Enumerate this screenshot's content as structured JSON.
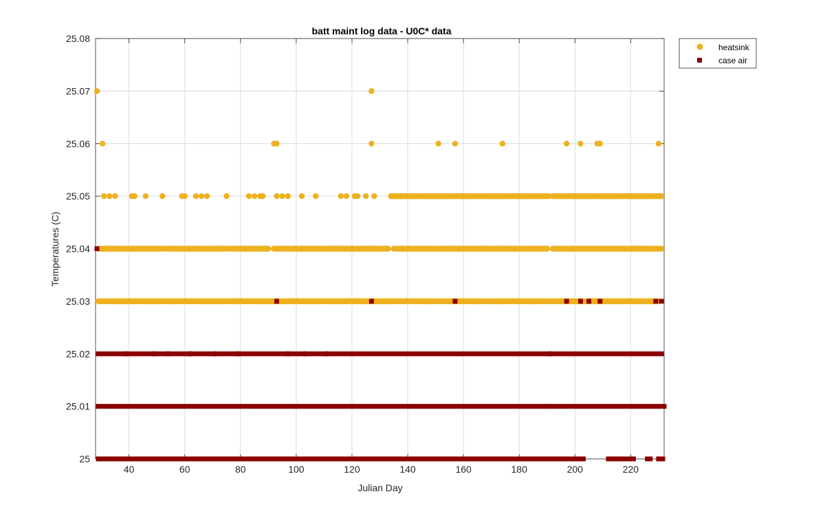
{
  "chart_data": {
    "type": "scatter",
    "title": "batt maint log data - U0C* data",
    "xlabel": "Julian Day",
    "ylabel": "Temperatures (C)",
    "xlim": [
      28,
      232
    ],
    "ylim": [
      25,
      25.08
    ],
    "x_ticks": [
      40,
      60,
      80,
      100,
      120,
      140,
      160,
      180,
      200,
      220
    ],
    "y_ticks": [
      25,
      25.01,
      25.02,
      25.03,
      25.04,
      25.05,
      25.06,
      25.07,
      25.08
    ],
    "y_tick_labels": [
      "25",
      "25.01",
      "25.02",
      "25.03",
      "25.04",
      "25.05",
      "25.06",
      "25.07",
      "25.08"
    ],
    "grid": true,
    "legend_position": "outside top-right",
    "series": [
      {
        "name": "heatsink",
        "marker": "circle",
        "color": "#EDB120",
        "points": [
          [
            28.5,
            25.07
          ],
          [
            30.5,
            25.06
          ],
          [
            92,
            25.06
          ],
          [
            93,
            25.06
          ],
          [
            127,
            25.07
          ],
          [
            127,
            25.06
          ],
          [
            151,
            25.06
          ],
          [
            157,
            25.06
          ],
          [
            174,
            25.06
          ],
          [
            197,
            25.06
          ],
          [
            202,
            25.06
          ],
          [
            208,
            25.06
          ],
          [
            209,
            25.06
          ],
          [
            230,
            25.06
          ],
          [
            31,
            25.05
          ],
          [
            33,
            25.05
          ],
          [
            35,
            25.05
          ],
          [
            41,
            25.05
          ],
          [
            42,
            25.05
          ],
          [
            46,
            25.05
          ],
          [
            52,
            25.05
          ],
          [
            59,
            25.05
          ],
          [
            60,
            25.05
          ],
          [
            64,
            25.05
          ],
          [
            66,
            25.05
          ],
          [
            68,
            25.05
          ],
          [
            75,
            25.05
          ],
          [
            83,
            25.05
          ],
          [
            85,
            25.05
          ],
          [
            87,
            25.05
          ],
          [
            88,
            25.05
          ],
          [
            93,
            25.05
          ],
          [
            95,
            25.05
          ],
          [
            97,
            25.05
          ],
          [
            102,
            25.05
          ],
          [
            107,
            25.05
          ],
          [
            116,
            25.05
          ],
          [
            118,
            25.05
          ],
          [
            121,
            25.05
          ],
          [
            122,
            25.05
          ],
          [
            125,
            25.05
          ],
          [
            128,
            25.05
          ],
          [
            134,
            25.05
          ],
          [
            138,
            25.05
          ],
          [
            142,
            25.05
          ],
          [
            146,
            25.05
          ],
          [
            150,
            25.05
          ],
          [
            154,
            25.05
          ],
          [
            158,
            25.05
          ],
          [
            162,
            25.05
          ],
          [
            166,
            25.05
          ],
          [
            170,
            25.05
          ],
          [
            174,
            25.05
          ],
          [
            178,
            25.05
          ],
          [
            182,
            25.05
          ],
          [
            186,
            25.05
          ],
          [
            190,
            25.05
          ],
          [
            194,
            25.05
          ],
          [
            198,
            25.05
          ],
          [
            202,
            25.05
          ],
          [
            206,
            25.05
          ],
          [
            210,
            25.05
          ],
          [
            214,
            25.05
          ],
          [
            218,
            25.05
          ],
          [
            222,
            25.05
          ],
          [
            226,
            25.05
          ],
          [
            230,
            25.05
          ],
          [
            32,
            25.04
          ],
          [
            36,
            25.04
          ],
          [
            40,
            25.04
          ],
          [
            44,
            25.04
          ],
          [
            48,
            25.04
          ],
          [
            56,
            25.04
          ],
          [
            60,
            25.04
          ],
          [
            64,
            25.04
          ],
          [
            72,
            25.04
          ],
          [
            76,
            25.04
          ],
          [
            80,
            25.04
          ],
          [
            84,
            25.04
          ],
          [
            88,
            25.04
          ],
          [
            96,
            25.04
          ],
          [
            100,
            25.04
          ],
          [
            104,
            25.04
          ],
          [
            108,
            25.04
          ],
          [
            112,
            25.04
          ],
          [
            116,
            25.04
          ],
          [
            120,
            25.04
          ],
          [
            124,
            25.04
          ],
          [
            128,
            25.04
          ],
          [
            136,
            25.04
          ],
          [
            140,
            25.04
          ],
          [
            144,
            25.04
          ],
          [
            148,
            25.04
          ],
          [
            152,
            25.04
          ],
          [
            156,
            25.04
          ],
          [
            160,
            25.04
          ],
          [
            164,
            25.04
          ],
          [
            168,
            25.04
          ],
          [
            172,
            25.04
          ],
          [
            176,
            25.04
          ],
          [
            180,
            25.04
          ],
          [
            184,
            25.04
          ],
          [
            188,
            25.04
          ],
          [
            194,
            25.04
          ],
          [
            198,
            25.04
          ],
          [
            202,
            25.04
          ],
          [
            206,
            25.04
          ],
          [
            212,
            25.04
          ],
          [
            216,
            25.04
          ],
          [
            222,
            25.04
          ],
          [
            226,
            25.04
          ],
          [
            230,
            25.04
          ],
          [
            30,
            25.03
          ],
          [
            34,
            25.03
          ],
          [
            38,
            25.03
          ],
          [
            42,
            25.03
          ],
          [
            46,
            25.03
          ],
          [
            50,
            25.03
          ],
          [
            54,
            25.03
          ],
          [
            58,
            25.03
          ],
          [
            62,
            25.03
          ],
          [
            66,
            25.03
          ],
          [
            70,
            25.03
          ],
          [
            74,
            25.03
          ],
          [
            78,
            25.03
          ],
          [
            82,
            25.03
          ],
          [
            86,
            25.03
          ],
          [
            90,
            25.03
          ],
          [
            96,
            25.03
          ],
          [
            100,
            25.03
          ],
          [
            104,
            25.03
          ],
          [
            108,
            25.03
          ],
          [
            112,
            25.03
          ],
          [
            116,
            25.03
          ],
          [
            120,
            25.03
          ],
          [
            124,
            25.03
          ],
          [
            130,
            25.03
          ],
          [
            134,
            25.03
          ],
          [
            138,
            25.03
          ],
          [
            142,
            25.03
          ],
          [
            146,
            25.03
          ],
          [
            150,
            25.03
          ],
          [
            160,
            25.03
          ],
          [
            164,
            25.03
          ],
          [
            170,
            25.03
          ],
          [
            174,
            25.03
          ],
          [
            178,
            25.03
          ],
          [
            182,
            25.03
          ],
          [
            186,
            25.03
          ],
          [
            190,
            25.03
          ],
          [
            212,
            25.03
          ],
          [
            216,
            25.03
          ],
          [
            222,
            25.03
          ],
          [
            226,
            25.03
          ],
          [
            39,
            25.02
          ],
          [
            49,
            25.02
          ],
          [
            54,
            25.02
          ],
          [
            62,
            25.02
          ],
          [
            71,
            25.02
          ],
          [
            79,
            25.02
          ],
          [
            97,
            25.02
          ],
          [
            103,
            25.02
          ],
          [
            111,
            25.02
          ],
          [
            191,
            25.02
          ]
        ],
        "dense_runs": [
          {
            "y": 25.05,
            "x_start": 134,
            "x_end": 190.5
          },
          {
            "y": 25.05,
            "x_start": 192,
            "x_end": 231
          },
          {
            "y": 25.04,
            "x_start": 29,
            "x_end": 53
          },
          {
            "y": 25.04,
            "x_start": 54,
            "x_end": 75
          },
          {
            "y": 25.04,
            "x_start": 76,
            "x_end": 90
          },
          {
            "y": 25.04,
            "x_start": 92,
            "x_end": 133
          },
          {
            "y": 25.04,
            "x_start": 135,
            "x_end": 190
          },
          {
            "y": 25.04,
            "x_start": 192,
            "x_end": 231
          },
          {
            "y": 25.03,
            "x_start": 29,
            "x_end": 140
          },
          {
            "y": 25.03,
            "x_start": 141,
            "x_end": 149
          },
          {
            "y": 25.03,
            "x_start": 150,
            "x_end": 166
          },
          {
            "y": 25.03,
            "x_start": 167,
            "x_end": 191
          },
          {
            "y": 25.03,
            "x_start": 192,
            "x_end": 230
          }
        ]
      },
      {
        "name": "case air",
        "marker": "square",
        "color": "#8B0000",
        "points": [
          [
            28.5,
            25.04
          ],
          [
            93,
            25.03
          ],
          [
            127,
            25.03
          ],
          [
            157,
            25.03
          ],
          [
            197,
            25.03
          ],
          [
            202,
            25.03
          ],
          [
            205,
            25.03
          ],
          [
            209,
            25.03
          ],
          [
            229,
            25.03
          ],
          [
            231,
            25.03
          ]
        ],
        "dense_runs": [
          {
            "y": 25.02,
            "x_start": 29,
            "x_end": 231
          },
          {
            "y": 25.01,
            "x_start": 29,
            "x_end": 190.5
          },
          {
            "y": 25.01,
            "x_start": 191.5,
            "x_end": 232
          },
          {
            "y": 25.0,
            "x_start": 29,
            "x_end": 165.5
          },
          {
            "y": 25.0,
            "x_start": 166.5,
            "x_end": 190.5
          },
          {
            "y": 25.0,
            "x_start": 191.5,
            "x_end": 201
          },
          {
            "y": 25.0,
            "x_start": 202,
            "x_end": 203
          },
          {
            "y": 25.0,
            "x_start": 212,
            "x_end": 214
          },
          {
            "y": 25.0,
            "x_start": 215,
            "x_end": 218
          },
          {
            "y": 25.0,
            "x_start": 219,
            "x_end": 221
          },
          {
            "y": 25.0,
            "x_start": 226,
            "x_end": 227
          },
          {
            "y": 25.0,
            "x_start": 230,
            "x_end": 231.5
          }
        ]
      }
    ]
  }
}
